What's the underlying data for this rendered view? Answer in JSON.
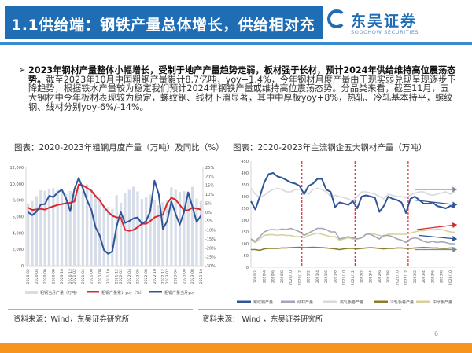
{
  "header": {
    "title": "1.1供给端：钢铁产量总体增长，供给相对充足"
  },
  "logo": {
    "cn": "东吴证券",
    "en": "SOOCHOW SECURITIES"
  },
  "bullet": {
    "bold": "2023年钢材产量整体小幅增长，受制于地产产量趋势走弱，板材强于长材，预计2024年供给维持高位震荡态势。",
    "text": "截至2023年10月中国粗钢产量累计8.7亿吨，yoy+1.4%，今年钢材月度产量由于现实弱兑现呈现逐步下降趋势，根据铁水产量较为稳定我们预计2024年钢铁产量或维持高位震荡态势。分品类来看，截至11月，五大钢材中今年板材表现较为稳定，螺纹钢、线材下滑显著，其中中厚板yoy+8%，热轧、冷轧基本持平，螺纹钢、线材分别yoy-6%/-14%。"
  },
  "source_left": "资料来源：Wind，东吴证券研究所",
  "source_right": "资料来源： Wind ，东吴证券研究所",
  "page_number": "6",
  "colors": {
    "header": "#1f6db5",
    "footer": "#f7941d",
    "bar": "#d6dce8",
    "red": "#d9272e",
    "blue": "#2f5597"
  },
  "chart_data": [
    {
      "type": "bar+line",
      "title": "图表：2020-2023年粗钢月度产量（万吨）及同比（%）",
      "categories": [
        "2020-02",
        "2020-03",
        "2020-04",
        "2020-05",
        "2020-06",
        "2020-07",
        "2020-08",
        "2020-09",
        "2020-10",
        "2020-11",
        "2020-12",
        "2021-02",
        "2021-03",
        "2021-04",
        "2021-05",
        "2021-06",
        "2021-07",
        "2021-08",
        "2021-09",
        "2021-10",
        "2021-11",
        "2021-12",
        "2022-02",
        "2022-03",
        "2022-04",
        "2022-05",
        "2022-06",
        "2022-07",
        "2022-08",
        "2022-09",
        "2022-10",
        "2022-11",
        "2022-12",
        "2023-02",
        "2023-03",
        "2023-04",
        "2023-05",
        "2023-06",
        "2023-07",
        "2023-08",
        "2023-09",
        "2023-10"
      ],
      "tick_labels": [
        "2020-02",
        "2020-04",
        "2020-06",
        "2020-08",
        "2020-10",
        "2020-12",
        "2021-02",
        "2021-04",
        "2021-06",
        "2021-08",
        "2021-10",
        "2021-12",
        "2022-02",
        "2022-04",
        "2022-06",
        "2022-08",
        "2022-10",
        "2022-12",
        "2023-02",
        "2023-04",
        "2023-06",
        "2023-08",
        "2023-10"
      ],
      "ylim_left": [
        0,
        12000
      ],
      "yticks_left": [
        "0",
        "2,000",
        "4,000",
        "6,000",
        "8,000",
        "10,000",
        "12,000"
      ],
      "ylim_right": [
        -30,
        25
      ],
      "yticks_right": [
        "-30%",
        "-25%",
        "-20%",
        "-15%",
        "-10%",
        "-5%",
        "0%",
        "5%",
        "10%",
        "15%",
        "20%",
        "25%"
      ],
      "series": [
        {
          "name": "粗钢当月产量（万吨）",
          "type": "bar",
          "axis": "left",
          "color": "#d6dce8",
          "values": [
            7600,
            7900,
            8500,
            9227,
            9158,
            9336,
            9485,
            9255,
            9220,
            8766,
            9125,
            8700,
            9402,
            9785,
            9945,
            9388,
            8679,
            8324,
            7375,
            7158,
            6933,
            8618,
            7700,
            8830,
            9278,
            9661,
            9073,
            8143,
            8413,
            8695,
            7976,
            7375,
            7790,
            8000,
            9573,
            9264,
            9012,
            9111,
            9080,
            9641,
            8211,
            7909
          ]
        },
        {
          "name": "粗钢产量累计yoy（%）",
          "type": "line",
          "axis": "right",
          "color": "#d9272e",
          "values": [
            2.5,
            1.2,
            1.5,
            1.8,
            1.4,
            2.5,
            3.2,
            4,
            4.5,
            5,
            5.2,
            6,
            15.5,
            15,
            13.5,
            12,
            9,
            6.5,
            3,
            0,
            -2,
            -3,
            -3,
            -10,
            -10.5,
            -10,
            -8.5,
            -6.5,
            -6.5,
            -5,
            -3,
            -2,
            -1.5,
            5,
            8,
            7,
            4,
            1,
            1,
            2.5,
            2,
            1.4
          ]
        },
        {
          "name": "粗钢产量当月yoy",
          "type": "line",
          "axis": "right",
          "color": "#2f5597",
          "values": [
            0,
            -1.7,
            0.2,
            4.2,
            4.5,
            9.1,
            8.4,
            10.9,
            12.7,
            7.7,
            0.5,
            12.9,
            19.1,
            13.4,
            6.6,
            1.5,
            -8.4,
            -13.2,
            -21.2,
            -23.3,
            -22,
            -8,
            0,
            -6,
            -5,
            -3.5,
            -3,
            -6.5,
            -5,
            0.5,
            17.6,
            10,
            -9.5,
            -5,
            6,
            -1,
            -7,
            0,
            11,
            3,
            -5.5,
            -2
          ]
        }
      ]
    },
    {
      "type": "line",
      "title": "图表：2020-2023年主流钢企五大钢材产量（万吨）",
      "x": [
        "2020-01",
        "2020-02",
        "2020-03",
        "2020-04",
        "2020-05",
        "2020-06",
        "2020-07",
        "2020-08",
        "2020-09",
        "2020-10",
        "2020-11",
        "2020-12",
        "2021-01",
        "2021-02",
        "2021-03",
        "2021-04",
        "2021-05",
        "2021-06",
        "2021-07",
        "2021-08",
        "2021-09",
        "2021-10",
        "2021-11",
        "2021-12",
        "2022-01",
        "2022-02",
        "2022-03",
        "2022-04",
        "2022-05",
        "2022-06",
        "2022-07",
        "2022-08",
        "2022-09",
        "2022-10",
        "2022-11",
        "2022-12",
        "2023-01",
        "2023-02",
        "2023-03",
        "2023-04",
        "2023-05",
        "2023-06",
        "2023-07",
        "2023-08",
        "2023-09",
        "2023-10",
        "2023-11"
      ],
      "tick_labels": [
        "2020/2",
        "2020/4",
        "2020/6",
        "2020/8",
        "2020/10",
        "2020/12",
        "2021/2",
        "2021/4",
        "2021/6",
        "2021/8",
        "2021/10",
        "2021/12",
        "2022/2",
        "2022/4",
        "2022/6",
        "2022/8",
        "2022/10",
        "2022/12",
        "2023/2",
        "2023/4",
        "2023/6",
        "2023/8",
        "2023/10"
      ],
      "ylim": [
        0,
        450
      ],
      "yticks": [
        "0",
        "50",
        "100",
        "150",
        "200",
        "250",
        "300",
        "350",
        "400",
        "450"
      ],
      "year_dividers": [
        "2020-12",
        "2021-12",
        "2022-12"
      ],
      "series": [
        {
          "name": "螺纹钢产量",
          "color": "#2f5597",
          "values": [
            280,
            245,
            300,
            360,
            395,
            400,
            385,
            380,
            370,
            360,
            355,
            345,
            310,
            345,
            355,
            375,
            375,
            330,
            320,
            255,
            275,
            270,
            265,
            280,
            250,
            300,
            305,
            300,
            295,
            235,
            260,
            300,
            290,
            285,
            275,
            230,
            290,
            300,
            285,
            270,
            270,
            275,
            260,
            255,
            250,
            260,
            255
          ]
        },
        {
          "name": "线材产量",
          "color": "#a3a6b4",
          "values": [
            120,
            110,
            130,
            150,
            158,
            160,
            158,
            162,
            160,
            165,
            158,
            150,
            135,
            145,
            155,
            165,
            165,
            160,
            150,
            150,
            120,
            125,
            130,
            125,
            120,
            125,
            140,
            140,
            130,
            120,
            135,
            135,
            130,
            120,
            115,
            105,
            120,
            125,
            120,
            110,
            105,
            110,
            105,
            108,
            105,
            100,
            100
          ]
        },
        {
          "name": "热轧板卷产量",
          "color": "#d9d9d9",
          "values": [
            335,
            310,
            295,
            305,
            320,
            330,
            335,
            330,
            320,
            320,
            330,
            330,
            320,
            310,
            330,
            335,
            330,
            320,
            300,
            305,
            300,
            295,
            290,
            280,
            300,
            320,
            320,
            315,
            310,
            300,
            290,
            310,
            305,
            300,
            300,
            295,
            305,
            315,
            320,
            320,
            310,
            305,
            310,
            315,
            320,
            310,
            320
          ]
        },
        {
          "name": "冷轧板卷产量",
          "color": "#8a7d2c",
          "values": [
            75,
            75,
            72,
            78,
            80,
            80,
            80,
            82,
            82,
            83,
            84,
            85,
            83,
            84,
            85,
            84,
            83,
            82,
            80,
            78,
            75,
            78,
            80,
            80,
            78,
            80,
            82,
            83,
            82,
            80,
            78,
            80,
            80,
            82,
            82,
            80,
            80,
            82,
            83,
            84,
            83,
            82,
            82,
            80,
            80,
            82,
            82
          ]
        },
        {
          "name": "中厚板产量",
          "color": "#d8cf9c",
          "values": [
            115,
            105,
            120,
            135,
            138,
            138,
            135,
            138,
            135,
            135,
            130,
            130,
            125,
            135,
            140,
            145,
            140,
            135,
            130,
            130,
            115,
            120,
            125,
            120,
            120,
            125,
            140,
            145,
            140,
            135,
            130,
            140,
            140,
            140,
            140,
            140,
            145,
            150,
            155,
            155,
            158,
            160,
            162,
            160,
            155,
            150,
            148
          ]
        }
      ],
      "annotations": [
        {
          "type": "arrow",
          "trend": "flat",
          "color": "#7f8a99"
        },
        {
          "type": "arrow",
          "trend": "down",
          "color": "#2f5597"
        },
        {
          "type": "arrow",
          "trend": "up",
          "color": "#d9272e"
        },
        {
          "type": "arrow",
          "trend": "down",
          "color": "#2f5597"
        },
        {
          "type": "arrow",
          "trend": "flat",
          "color": "#7f8a99"
        }
      ]
    }
  ]
}
